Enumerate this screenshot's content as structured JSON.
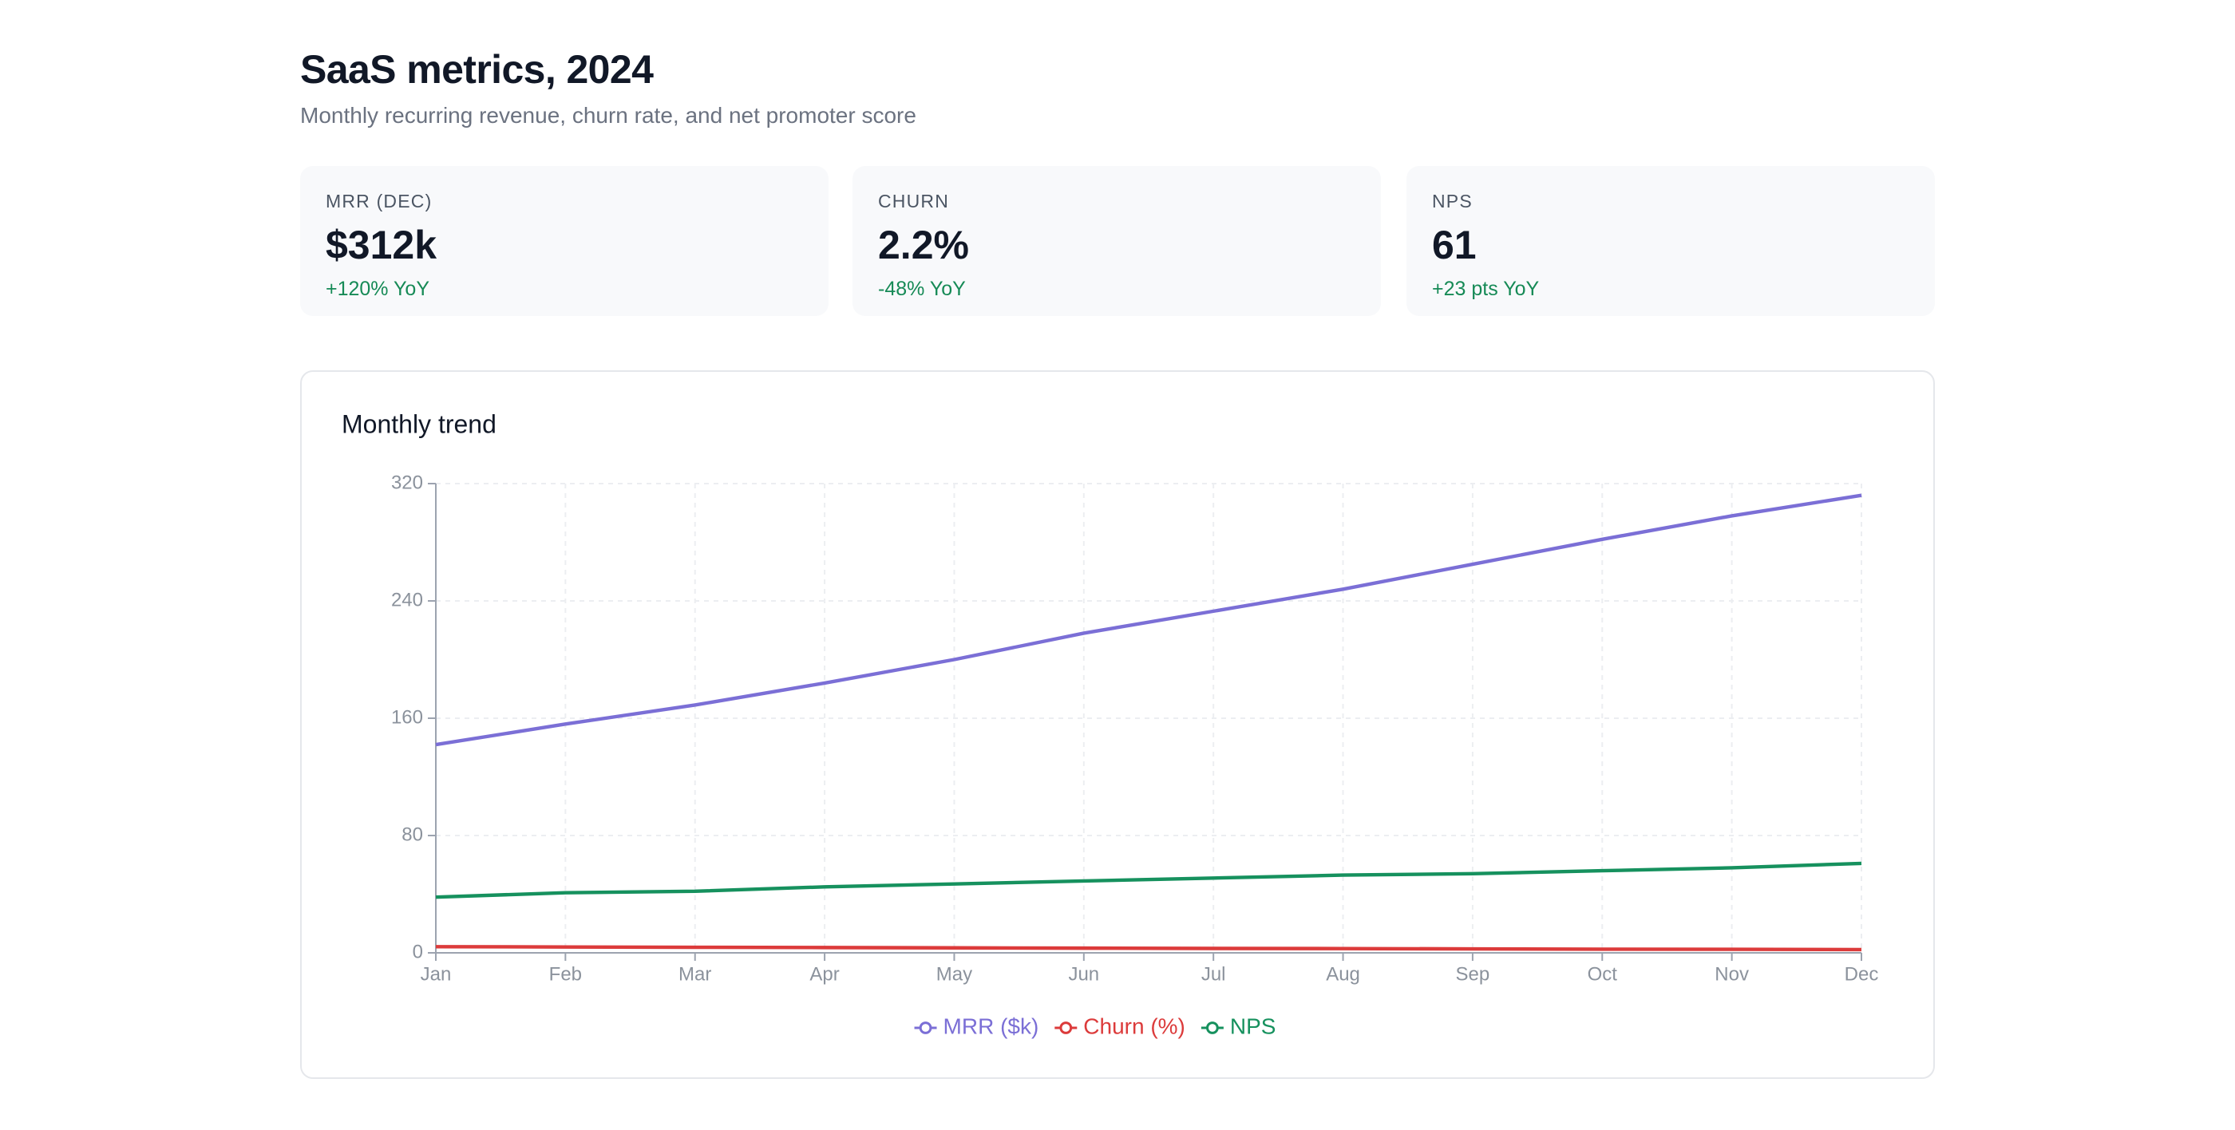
{
  "header": {
    "title": "SaaS metrics, 2024",
    "subtitle": "Monthly recurring revenue, churn rate, and net promoter score"
  },
  "kpis": [
    {
      "label": "MRR (DEC)",
      "value": "$312k",
      "delta": "+120% YoY"
    },
    {
      "label": "CHURN",
      "value": "2.2%",
      "delta": "-48% YoY"
    },
    {
      "label": "NPS",
      "value": "61",
      "delta": "+23 pts YoY"
    }
  ],
  "chart_data": {
    "type": "line",
    "title": "Monthly trend",
    "categories": [
      "Jan",
      "Feb",
      "Mar",
      "Apr",
      "May",
      "Jun",
      "Jul",
      "Aug",
      "Sep",
      "Oct",
      "Nov",
      "Dec"
    ],
    "series": [
      {
        "name": "MRR ($k)",
        "color": "#7b6fd6",
        "values": [
          142,
          156,
          169,
          184,
          200,
          218,
          233,
          248,
          265,
          282,
          298,
          312
        ]
      },
      {
        "name": "Churn (%)",
        "color": "#dc3b3b",
        "values": [
          4.2,
          4.0,
          3.8,
          3.6,
          3.4,
          3.2,
          3.0,
          2.9,
          2.7,
          2.5,
          2.4,
          2.2
        ]
      },
      {
        "name": "NPS",
        "color": "#16915e",
        "values": [
          38,
          41,
          42,
          45,
          47,
          49,
          51,
          53,
          54,
          56,
          58,
          61
        ]
      }
    ],
    "ylim": [
      0,
      320
    ],
    "yticks": [
      0,
      80,
      160,
      240,
      320
    ],
    "grid": true,
    "legend": "bottom"
  }
}
